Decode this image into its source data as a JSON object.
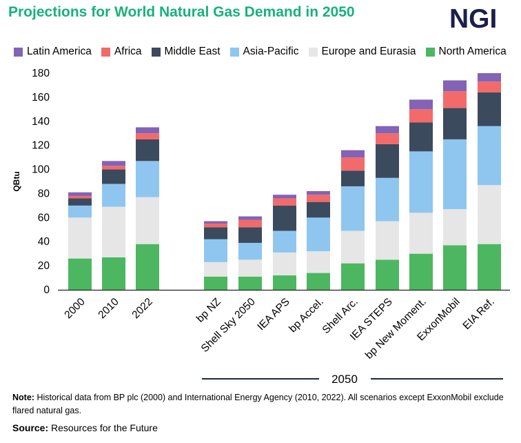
{
  "header": {
    "title": "Projections for World Natural Gas Demand in 2050",
    "logo": "NGI"
  },
  "footer": {
    "note_label": "Note:",
    "note_text": "Historical data from BP plc (2000) and International Energy Agency (2010, 2022). All scenarios except ExxonMobil exclude flared natural gas.",
    "source_label": "Source:",
    "source_text": "Resources for the Future"
  },
  "colors": {
    "title": "#17b27a",
    "logo": "#1c1f4a",
    "North America": "#4cb760",
    "Europe and Eurasia": "#e6e6e6",
    "Asia-Pacific": "#8ec6f0",
    "Middle East": "#3c4a5e",
    "Africa": "#f26a6a",
    "Latin America": "#8263b5"
  },
  "chart_data": {
    "type": "bar",
    "stacked": true,
    "title": "Projections for World Natural Gas Demand in 2050",
    "ylabel": "QBtu",
    "ylim": [
      0,
      180
    ],
    "yticks": [
      0,
      20,
      40,
      60,
      80,
      100,
      120,
      140,
      160,
      180
    ],
    "group_label": "2050",
    "legend_position": "top",
    "legend_order": [
      "Latin America",
      "Africa",
      "Middle East",
      "Asia-Pacific",
      "Europe and Eurasia",
      "North America"
    ],
    "categories": [
      "2000",
      "2010",
      "2022",
      "bp NZ",
      "Shell Sky 2050",
      "IEA APS",
      "bp Accel.",
      "Shell Arc.",
      "IEA STEPS",
      "bp New Moment.",
      "ExxonMobil",
      "EIA Ref."
    ],
    "series": [
      {
        "name": "North America",
        "values": [
          26,
          27,
          38,
          11,
          11,
          12,
          14,
          22,
          25,
          30,
          37,
          38
        ]
      },
      {
        "name": "Europe and Eurasia",
        "values": [
          34,
          42,
          39,
          12,
          14,
          19,
          18,
          27,
          32,
          34,
          30,
          49
        ]
      },
      {
        "name": "Asia-Pacific",
        "values": [
          10,
          19,
          30,
          19,
          14,
          18,
          28,
          37,
          36,
          51,
          58,
          49
        ]
      },
      {
        "name": "Middle East",
        "values": [
          6,
          12,
          18,
          10,
          13,
          21,
          13,
          13,
          28,
          24,
          26,
          28
        ]
      },
      {
        "name": "Africa",
        "values": [
          2,
          3,
          5,
          3,
          6,
          6,
          6,
          11,
          9,
          11,
          14,
          9
        ]
      },
      {
        "name": "Latin America",
        "values": [
          3,
          4,
          5,
          2,
          3,
          3,
          3,
          6,
          6,
          8,
          9,
          7
        ]
      }
    ]
  }
}
